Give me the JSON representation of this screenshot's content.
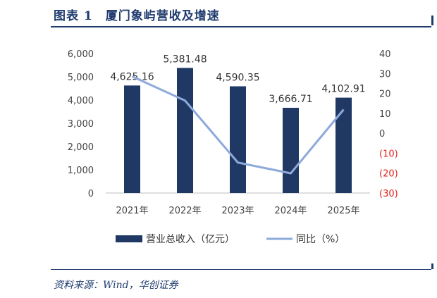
{
  "header": {
    "title": "图表 1　厦门象屿营收及增速"
  },
  "footer": {
    "source": "资料来源：Wind，华创证券"
  },
  "chart_data": {
    "type": "bar",
    "categories": [
      "2021年",
      "2022年",
      "2023年",
      "2024年",
      "2025年"
    ],
    "series": [
      {
        "name": "营业总收入（亿元）",
        "type": "bar",
        "axis": "left",
        "values": [
          4625.16,
          5381.48,
          4590.35,
          3666.71,
          4102.91
        ],
        "labels": [
          "4,625.16",
          "5,381.48",
          "4,590.35",
          "3,666.71",
          "4,102.91"
        ],
        "color": "#1f3864"
      },
      {
        "name": "同比（%）",
        "type": "line",
        "axis": "right",
        "values": [
          28.5,
          16.4,
          -14.7,
          -20.1,
          11.9
        ],
        "color": "#8eaadb"
      }
    ],
    "y_left": {
      "min": 0,
      "max": 6000,
      "ticks": [
        "0",
        "1,000",
        "2,000",
        "3,000",
        "4,000",
        "5,000",
        "6,000"
      ]
    },
    "y_right": {
      "min": -30,
      "max": 40,
      "ticks": [
        "(30)",
        "(20)",
        "(10)",
        "0",
        "10",
        "20",
        "30",
        "40"
      ],
      "negative_color": "#e0201a"
    },
    "legend": "bottom",
    "grid": false
  }
}
